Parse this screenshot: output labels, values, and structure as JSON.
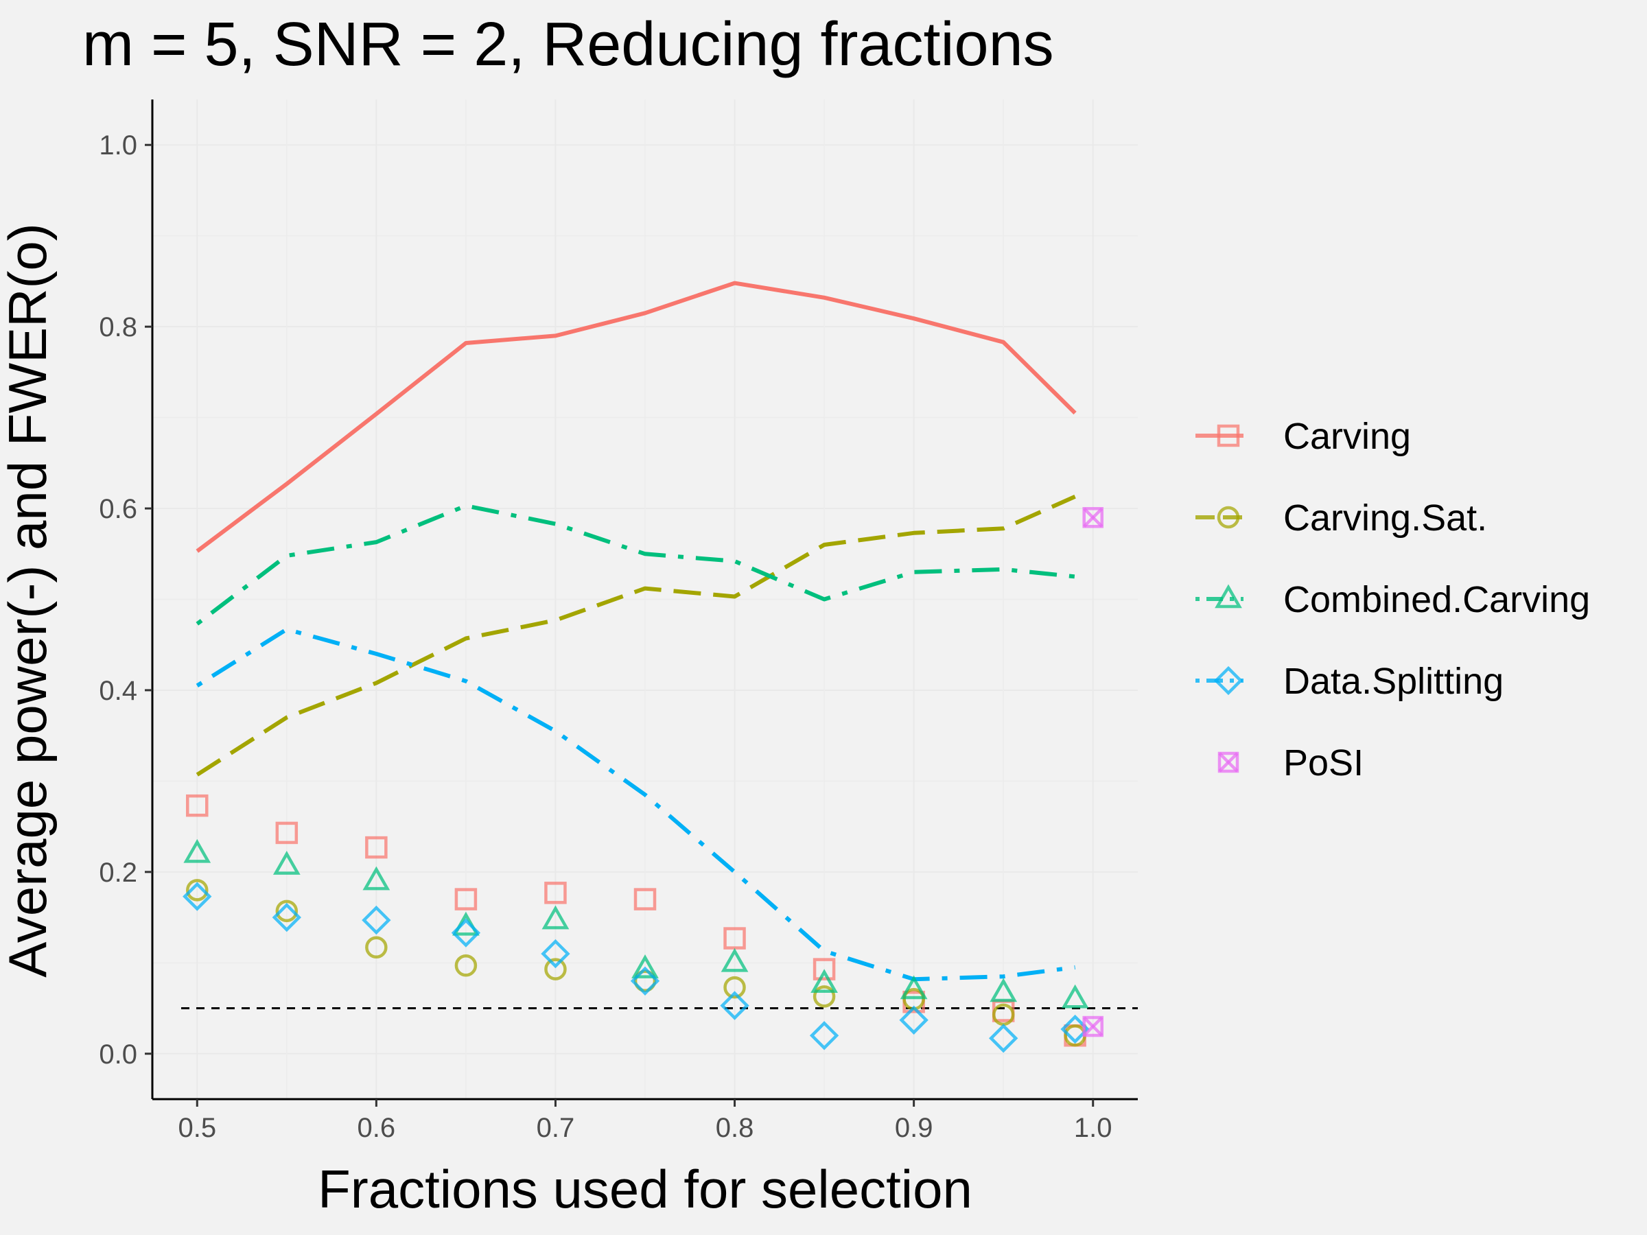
{
  "chart_data": {
    "type": "line",
    "title": "m = 5, SNR = 2, Reducing fractions",
    "xlabel": "Fractions used for selection",
    "ylabel": "Average power(-) and FWER(o)",
    "xlim": [
      0.475,
      1.025
    ],
    "ylim": [
      -0.05,
      1.05
    ],
    "x_ticks": [
      0.5,
      0.6,
      0.7,
      0.8,
      0.9,
      1.0
    ],
    "x_tick_labels": [
      "0.5",
      "0.6",
      "0.7",
      "0.8",
      "0.9",
      "1.0"
    ],
    "y_ticks": [
      0.0,
      0.2,
      0.4,
      0.6,
      0.8,
      1.0
    ],
    "y_tick_labels": [
      "0.0",
      "0.2",
      "0.4",
      "0.6",
      "0.8",
      "1.0"
    ],
    "grid": true,
    "legend_position": "right",
    "reference_line": {
      "y": 0.05,
      "style": "dashed",
      "color": "#000000"
    },
    "series": [
      {
        "name": "Carving",
        "color": "#F8766D",
        "marker": "square",
        "dash": "solid",
        "power": {
          "x": [
            0.5,
            0.55,
            0.6,
            0.65,
            0.7,
            0.75,
            0.8,
            0.85,
            0.9,
            0.95,
            0.99
          ],
          "y": [
            0.553,
            0.627,
            0.704,
            0.782,
            0.79,
            0.815,
            0.848,
            0.832,
            0.809,
            0.783,
            0.705
          ]
        },
        "fwer": {
          "x": [
            0.5,
            0.55,
            0.6,
            0.65,
            0.7,
            0.75,
            0.8,
            0.85,
            0.9,
            0.95,
            0.99
          ],
          "y": [
            0.273,
            0.243,
            0.227,
            0.17,
            0.177,
            0.17,
            0.127,
            0.093,
            0.057,
            0.047,
            0.02
          ]
        }
      },
      {
        "name": "Carving.Sat.",
        "color": "#A3A500",
        "marker": "circle",
        "dash": "longdash",
        "power": {
          "x": [
            0.5,
            0.55,
            0.6,
            0.65,
            0.7,
            0.75,
            0.8,
            0.85,
            0.9,
            0.95,
            0.99
          ],
          "y": [
            0.307,
            0.37,
            0.408,
            0.457,
            0.477,
            0.512,
            0.503,
            0.56,
            0.573,
            0.578,
            0.613
          ]
        },
        "fwer": {
          "x": [
            0.5,
            0.55,
            0.6,
            0.65,
            0.7,
            0.75,
            0.8,
            0.85,
            0.9,
            0.95,
            0.99
          ],
          "y": [
            0.18,
            0.157,
            0.117,
            0.097,
            0.093,
            0.08,
            0.073,
            0.063,
            0.06,
            0.043,
            0.02
          ]
        }
      },
      {
        "name": "Combined.Carving",
        "color": "#00BF7D",
        "marker": "triangle",
        "dash": "dotdash",
        "power": {
          "x": [
            0.5,
            0.55,
            0.6,
            0.65,
            0.7,
            0.75,
            0.8,
            0.85,
            0.9,
            0.95,
            0.99
          ],
          "y": [
            0.473,
            0.548,
            0.563,
            0.603,
            0.583,
            0.55,
            0.542,
            0.5,
            0.53,
            0.533,
            0.525
          ]
        },
        "fwer": {
          "x": [
            0.5,
            0.55,
            0.6,
            0.65,
            0.7,
            0.75,
            0.8,
            0.85,
            0.9,
            0.95,
            0.99
          ],
          "y": [
            0.22,
            0.207,
            0.19,
            0.14,
            0.147,
            0.093,
            0.1,
            0.077,
            0.07,
            0.067,
            0.06
          ]
        }
      },
      {
        "name": "Data.Splitting",
        "color": "#00B0F6",
        "marker": "diamond",
        "dash": "dotdash",
        "power": {
          "x": [
            0.5,
            0.55,
            0.6,
            0.65,
            0.7,
            0.75,
            0.8,
            0.85,
            0.9,
            0.95,
            0.99
          ],
          "y": [
            0.405,
            0.467,
            0.44,
            0.41,
            0.355,
            0.285,
            0.2,
            0.113,
            0.082,
            0.085,
            0.095
          ]
        },
        "fwer": {
          "x": [
            0.5,
            0.55,
            0.6,
            0.65,
            0.7,
            0.75,
            0.8,
            0.85,
            0.9,
            0.95,
            0.99
          ],
          "y": [
            0.173,
            0.15,
            0.147,
            0.133,
            0.11,
            0.08,
            0.053,
            0.02,
            0.037,
            0.017,
            0.027
          ]
        }
      },
      {
        "name": "PoSI",
        "color": "#E76BF3",
        "marker": "square-cross",
        "dash": "none",
        "power": {
          "x": [
            1.0
          ],
          "y": [
            0.59
          ]
        },
        "fwer": {
          "x": [
            1.0
          ],
          "y": [
            0.03
          ]
        }
      }
    ]
  }
}
